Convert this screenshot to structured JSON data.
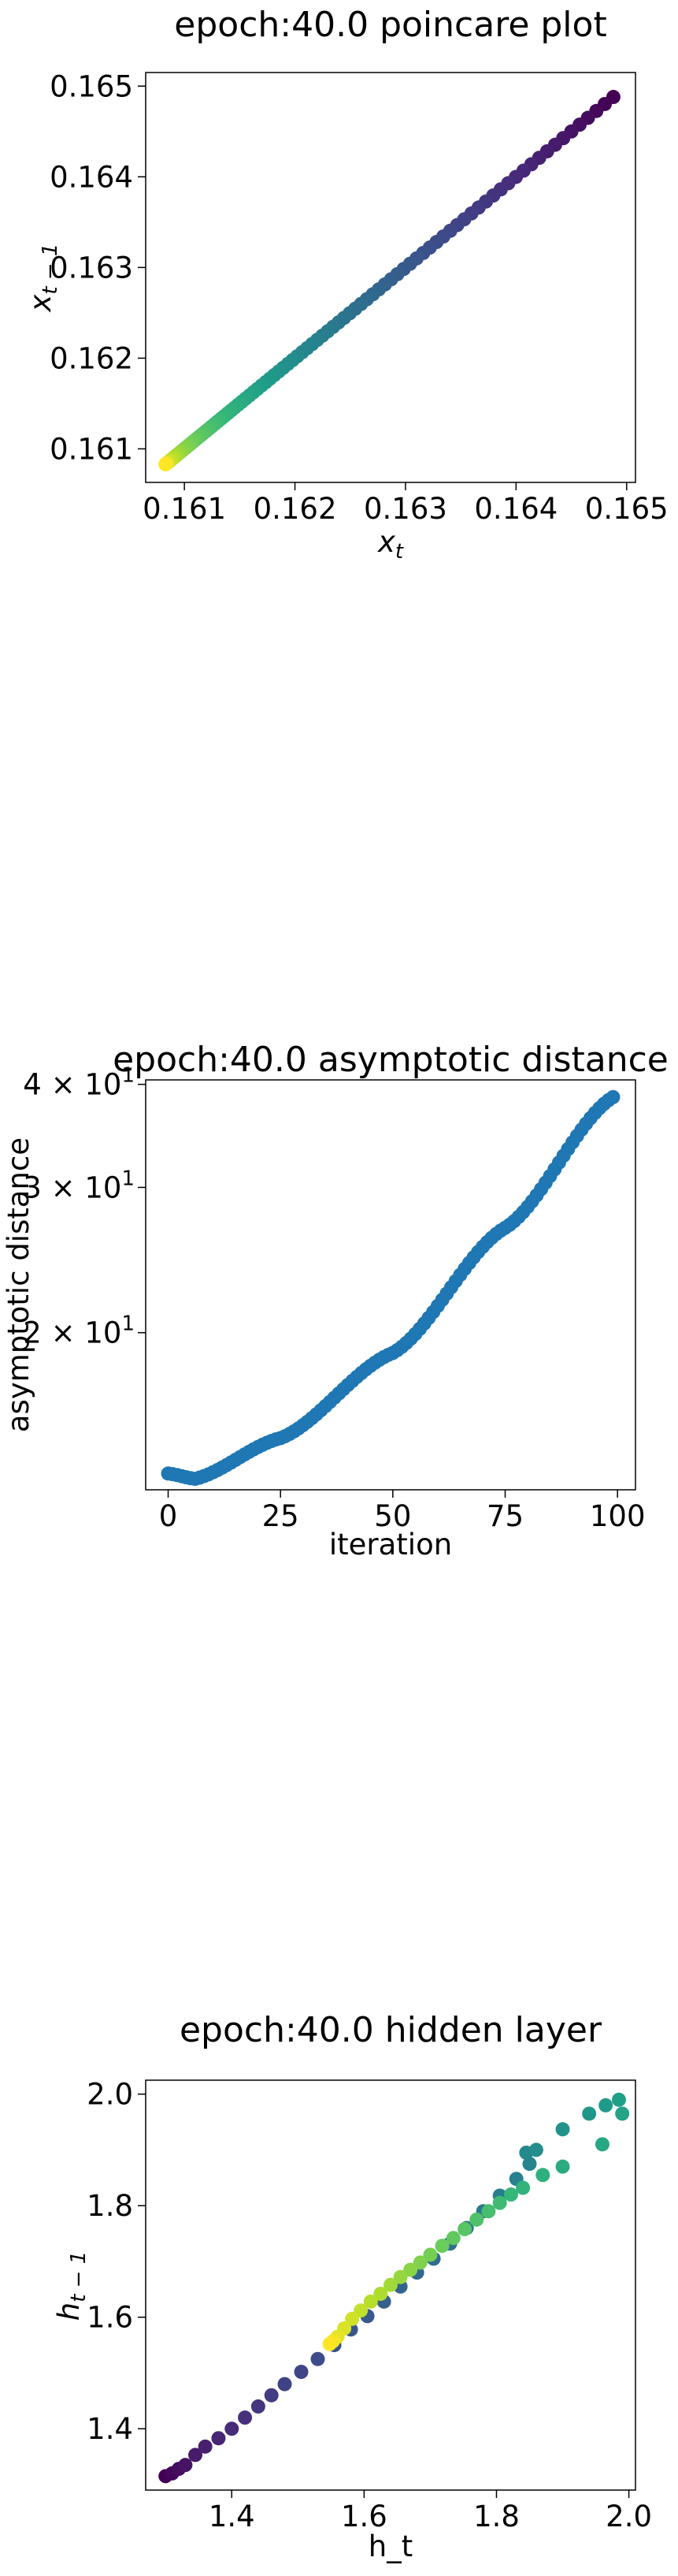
{
  "chart_data": [
    {
      "type": "scatter",
      "title": "epoch:40.0 poincare plot",
      "xlabel": "x_t",
      "ylabel": "x_{t-1}",
      "xlim": [
        0.16065,
        0.16508
      ],
      "ylim": [
        0.16063,
        0.16515
      ],
      "xticks": [
        0.161,
        0.162,
        0.163,
        0.164,
        0.165
      ],
      "yticks": [
        0.161,
        0.162,
        0.163,
        0.164,
        0.165
      ],
      "tick_labels": [
        "0.161",
        "0.162",
        "0.163",
        "0.164",
        "0.165"
      ],
      "colormap": "viridis",
      "color_by": "iteration (early = purple, late = yellow)",
      "points_pattern": "points lie on the diagonal x_t = x_{t-1}, spacing shrinks toward 0.1608",
      "start": 0.16488,
      "end": 0.16083,
      "count": 100
    },
    {
      "type": "scatter",
      "title": "epoch:40.0 asymptotic distance",
      "xlabel": "iteration",
      "ylabel": "asymptotic distance",
      "yscale": "log",
      "xlim": [
        -5,
        104
      ],
      "ylim": [
        12.9,
        40.5
      ],
      "xticks": [
        0,
        25,
        50,
        75,
        100
      ],
      "yticks": [
        20,
        30,
        40
      ],
      "ytick_labels": [
        {
          "base": "2",
          "mult": "× 10",
          "exp": "1"
        },
        {
          "base": "3",
          "mult": "× 10",
          "exp": "1"
        },
        {
          "base": "4",
          "mult": "× 10",
          "exp": "1"
        }
      ],
      "color": "#1f77b4",
      "series": {
        "x_start": 0,
        "x_end": 99,
        "y_at_0": 13.5,
        "y_min": 13.3,
        "y_at_min_iter": 6,
        "y_at_25": 14.9,
        "y_at_50": 18.9,
        "y_at_75": 26.8,
        "y_at_99": 38.6
      }
    },
    {
      "type": "scatter",
      "title": "epoch:40.0 hidden layer",
      "xlabel": "h_t",
      "ylabel": "h_{t-1}",
      "xlim": [
        1.27,
        2.01
      ],
      "ylim": [
        1.29,
        2.025
      ],
      "xticks": [
        1.4,
        1.6,
        1.8,
        2.0
      ],
      "yticks": [
        1.4,
        1.6,
        1.8,
        2.0
      ],
      "xtick_labels": [
        "1.4",
        "1.6",
        "1.8",
        "2.0"
      ],
      "ytick_labels": [
        "1.4",
        "1.6",
        "1.8",
        "2.0"
      ],
      "colormap": "viridis",
      "points": [
        [
          1.3,
          1.315
        ],
        [
          1.31,
          1.32
        ],
        [
          1.32,
          1.328
        ],
        [
          1.33,
          1.335
        ],
        [
          1.345,
          1.353
        ],
        [
          1.36,
          1.368
        ],
        [
          1.38,
          1.383
        ],
        [
          1.4,
          1.4
        ],
        [
          1.42,
          1.42
        ],
        [
          1.44,
          1.44
        ],
        [
          1.46,
          1.46
        ],
        [
          1.48,
          1.48
        ],
        [
          1.505,
          1.502
        ],
        [
          1.53,
          1.525
        ],
        [
          1.555,
          1.55
        ],
        [
          1.58,
          1.578
        ],
        [
          1.605,
          1.602
        ],
        [
          1.63,
          1.628
        ],
        [
          1.655,
          1.655
        ],
        [
          1.68,
          1.68
        ],
        [
          1.705,
          1.705
        ],
        [
          1.73,
          1.732
        ],
        [
          1.755,
          1.76
        ],
        [
          1.78,
          1.79
        ],
        [
          1.805,
          1.818
        ],
        [
          1.83,
          1.848
        ],
        [
          1.85,
          1.875
        ],
        [
          1.845,
          1.895
        ],
        [
          1.86,
          1.9
        ],
        [
          1.9,
          1.937
        ],
        [
          1.94,
          1.965
        ],
        [
          1.965,
          1.98
        ],
        [
          1.985,
          1.99
        ],
        [
          1.99,
          1.965
        ],
        [
          1.96,
          1.91
        ],
        [
          1.9,
          1.87
        ],
        [
          1.87,
          1.855
        ],
        [
          1.84,
          1.832
        ],
        [
          1.822,
          1.82
        ],
        [
          1.805,
          1.805
        ],
        [
          1.788,
          1.79
        ],
        [
          1.77,
          1.775
        ],
        [
          1.752,
          1.758
        ],
        [
          1.735,
          1.742
        ],
        [
          1.718,
          1.728
        ],
        [
          1.7,
          1.712
        ],
        [
          1.685,
          1.698
        ],
        [
          1.67,
          1.685
        ],
        [
          1.655,
          1.672
        ],
        [
          1.64,
          1.658
        ],
        [
          1.625,
          1.642
        ],
        [
          1.61,
          1.628
        ],
        [
          1.595,
          1.612
        ],
        [
          1.582,
          1.597
        ],
        [
          1.57,
          1.58
        ],
        [
          1.56,
          1.565
        ],
        [
          1.553,
          1.557
        ],
        [
          1.548,
          1.552
        ]
      ]
    }
  ]
}
